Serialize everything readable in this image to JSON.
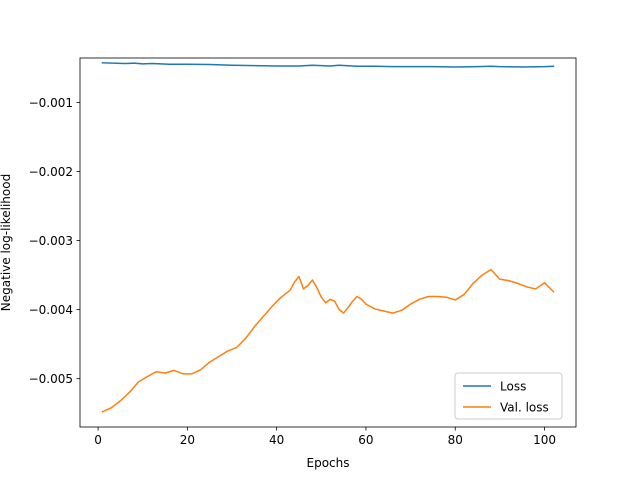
{
  "chart_data": {
    "type": "line",
    "title": "",
    "xlabel": "Epochs",
    "ylabel": "Negative log-likelihood",
    "xlim": [
      -4.05,
      107.05
    ],
    "ylim": [
      -0.0057,
      -0.000355
    ],
    "xticks": [
      0,
      20,
      40,
      60,
      80,
      100
    ],
    "xtick_labels": [
      "0",
      "20",
      "40",
      "60",
      "80",
      "100"
    ],
    "yticks": [
      -0.005,
      -0.004,
      -0.003,
      -0.002,
      -0.001
    ],
    "ytick_labels": [
      "−0.005",
      "−0.004",
      "−0.003",
      "−0.002",
      "−0.001"
    ],
    "grid": false,
    "legend_position": "lower right",
    "series": [
      {
        "name": "Loss",
        "color": "#1f77b4",
        "x": [
          1,
          6,
          8,
          10,
          12,
          16,
          20,
          25,
          30,
          35,
          40,
          45,
          48,
          52,
          54,
          58,
          62,
          66,
          70,
          75,
          80,
          85,
          88,
          90,
          95,
          100,
          102
        ],
        "y": [
          -0.000425,
          -0.000435,
          -0.00043,
          -0.00044,
          -0.000435,
          -0.000445,
          -0.000445,
          -0.00045,
          -0.00046,
          -0.000465,
          -0.00047,
          -0.00047,
          -0.00046,
          -0.00047,
          -0.00046,
          -0.000475,
          -0.000475,
          -0.00048,
          -0.00048,
          -0.00048,
          -0.000485,
          -0.00048,
          -0.000475,
          -0.00048,
          -0.000485,
          -0.00048,
          -0.000475
        ]
      },
      {
        "name": "Val. loss",
        "color": "#ff7f0e",
        "x": [
          1,
          3,
          5,
          7,
          9,
          11,
          13,
          15,
          17,
          19,
          21,
          23,
          25,
          27,
          29,
          31,
          33,
          35,
          37,
          39,
          41,
          43,
          44,
          45,
          46,
          47,
          48,
          49,
          50,
          51,
          52,
          53,
          54,
          55,
          56,
          57,
          58,
          59,
          60,
          62,
          64,
          66,
          68,
          70,
          72,
          74,
          76,
          78,
          80,
          82,
          84,
          86,
          88,
          90,
          92,
          94,
          96,
          98,
          100,
          102
        ],
        "y": [
          -0.00548,
          -0.00542,
          -0.00532,
          -0.0052,
          -0.00505,
          -0.00497,
          -0.0049,
          -0.00492,
          -0.00488,
          -0.00493,
          -0.00493,
          -0.00487,
          -0.00476,
          -0.00468,
          -0.0046,
          -0.00455,
          -0.00442,
          -0.00425,
          -0.0041,
          -0.00395,
          -0.00382,
          -0.00372,
          -0.0036,
          -0.00352,
          -0.0037,
          -0.00365,
          -0.00357,
          -0.00368,
          -0.00382,
          -0.0039,
          -0.00385,
          -0.00388,
          -0.004,
          -0.00405,
          -0.00397,
          -0.00388,
          -0.00381,
          -0.00385,
          -0.00392,
          -0.00399,
          -0.00402,
          -0.00405,
          -0.00401,
          -0.00392,
          -0.00385,
          -0.00381,
          -0.00381,
          -0.00382,
          -0.00386,
          -0.00378,
          -0.00362,
          -0.0035,
          -0.00342,
          -0.00356,
          -0.00358,
          -0.00362,
          -0.00367,
          -0.0037,
          -0.00361,
          -0.00374
        ]
      }
    ]
  }
}
